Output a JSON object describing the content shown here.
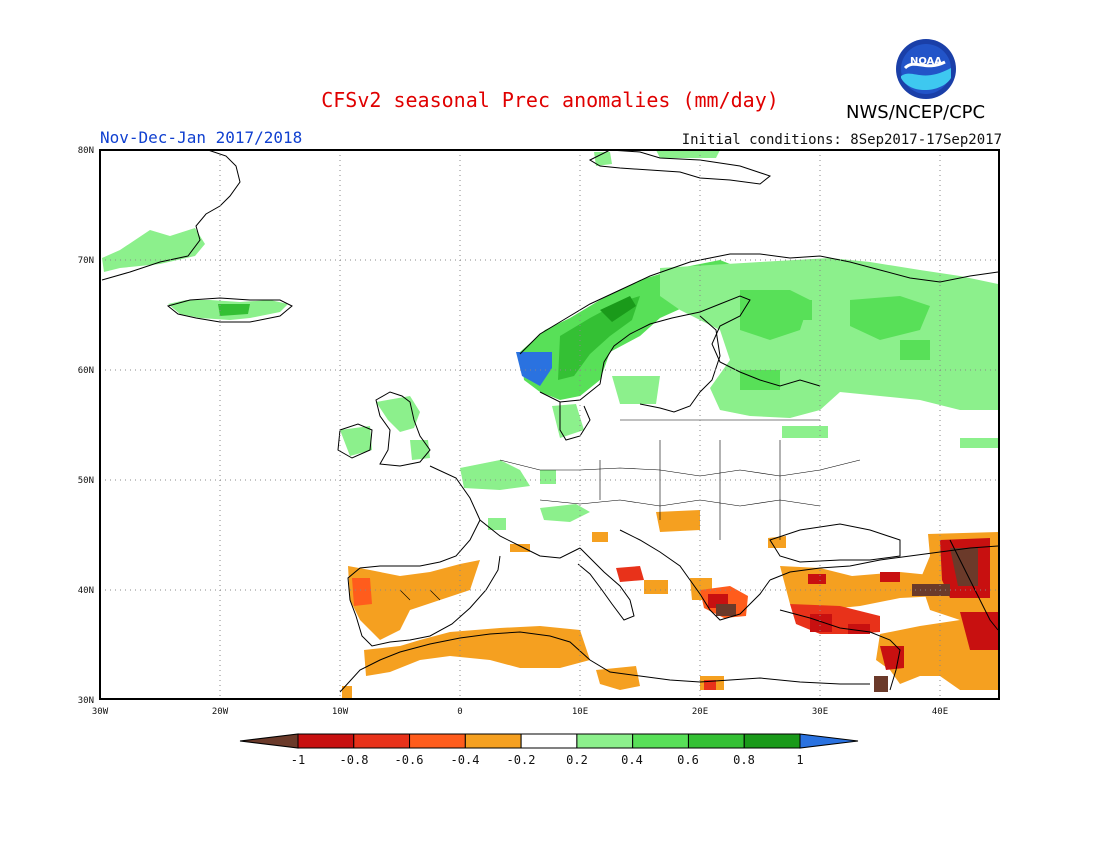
{
  "header": {
    "title": "CFSv2 seasonal Prec anomalies (mm/day)",
    "subtitle": "Nov-Dec-Jan 2017/2018",
    "initial_conditions": "Initial conditions: 8Sep2017-17Sep2017",
    "agency": "NWS/NCEP/CPC",
    "logo_text": "NOAA"
  },
  "axes": {
    "lon_ticks": [
      "30W",
      "20W",
      "10W",
      "0",
      "10E",
      "20E",
      "30E",
      "40E"
    ],
    "lat_ticks": [
      "80N",
      "70N",
      "60N",
      "50N",
      "40N",
      "30N"
    ]
  },
  "legend": {
    "labels": [
      "-1",
      "-0.8",
      "-0.6",
      "-0.4",
      "-0.2",
      "0.2",
      "0.4",
      "0.6",
      "0.8",
      "1"
    ],
    "colors": [
      "#6b3a2a",
      "#c81010",
      "#e8321a",
      "#ff5c1c",
      "#f5a020",
      "#ffffff",
      "#8cf08c",
      "#58e058",
      "#34c034",
      "#1a9a1a",
      "#2a72e0"
    ]
  },
  "map": {
    "region": "Europe",
    "colors": {
      "dry_strong": "#6b3a2a",
      "dry_very": "#c81010",
      "dry": "#e8321a",
      "dry_light": "#f5a020",
      "wet_light": "#8cf08c",
      "wet": "#58e058",
      "wet_more": "#34c034",
      "wet_strong": "#1a9a1a",
      "wet_extreme": "#2a72e0"
    }
  }
}
